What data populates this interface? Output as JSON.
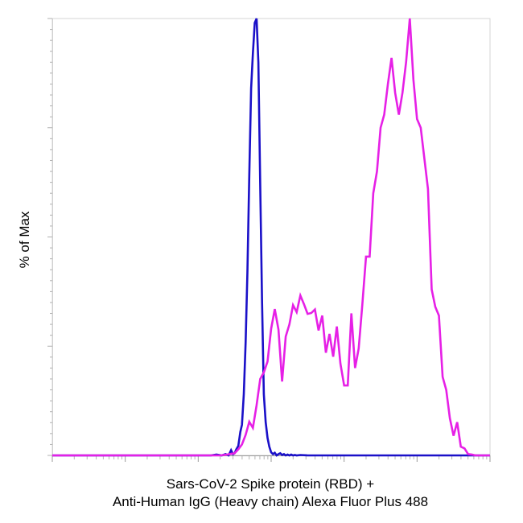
{
  "chart_data": {
    "type": "line",
    "title": "",
    "xlabel_line1": "Sars-CoV-2 Spike protein (RBD) +",
    "xlabel_line2": "Anti-Human IgG (Heavy chain) Alexa Fluor Plus 488",
    "ylabel": "% of Max",
    "x_scale": "log",
    "xlim": [
      1,
      1000000
    ],
    "ylim": [
      0,
      100
    ],
    "grid": false,
    "legend": "none",
    "series": [
      {
        "color": "#1a10c8",
        "x": [
          1,
          126,
          150,
          178,
          211,
          237,
          261,
          282,
          300,
          316,
          333,
          355,
          378,
          398,
          422,
          447,
          473,
          501,
          531,
          562,
          596,
          631,
          668,
          708,
          750,
          794,
          841,
          891,
          944,
          1000,
          1059,
          1122,
          1189,
          1259,
          1334,
          1413,
          1496,
          1585,
          1679,
          1778,
          1884,
          1995,
          2113,
          2239,
          2512,
          3162,
          10000,
          100000,
          1000000
        ],
        "y": [
          0,
          0,
          0,
          0.2,
          0,
          0.3,
          0,
          1.2,
          0.3,
          0.5,
          1.4,
          2.2,
          5.4,
          7,
          14,
          26,
          42,
          64,
          84,
          92,
          99,
          100,
          90,
          62,
          35,
          14,
          7.6,
          4,
          2,
          0.7,
          0.3,
          0.6,
          0,
          0.3,
          0.5,
          0.1,
          0.3,
          0,
          0.2,
          0,
          0.2,
          0,
          0.1,
          0,
          0.1,
          0,
          0,
          0,
          0
        ]
      },
      {
        "color": "#e620e6",
        "x": [
          1,
          200,
          251,
          316,
          355,
          398,
          447,
          501,
          562,
          631,
          708,
          794,
          891,
          1000,
          1122,
          1259,
          1413,
          1585,
          1778,
          1995,
          2239,
          2512,
          2818,
          3162,
          3548,
          3981,
          4467,
          5012,
          5623,
          6310,
          7079,
          7943,
          8913,
          10000,
          11220,
          12589,
          14125,
          15849,
          17783,
          19953,
          22387,
          25119,
          28184,
          31623,
          35481,
          39811,
          44668,
          50119,
          56234,
          63096,
          70795,
          79433,
          89125,
          100000,
          112202,
          125893,
          141254,
          158489,
          177828,
          199526,
          223872,
          251189,
          281838,
          316228,
          354813,
          398107,
          446684,
          501187,
          562341,
          631000,
          1000000
        ],
        "y": [
          0,
          0,
          0.2,
          0.5,
          1.4,
          2.5,
          4.7,
          7.7,
          6.3,
          11.5,
          17.5,
          19,
          21.5,
          29,
          33.5,
          28.8,
          16.9,
          27.2,
          30,
          34.4,
          32.8,
          36.6,
          34.6,
          32.4,
          32.6,
          33.4,
          28.6,
          32,
          23.5,
          27.8,
          22.6,
          29.5,
          21,
          16,
          16,
          32.5,
          20,
          24.5,
          34.5,
          45.5,
          45.5,
          60,
          65,
          75,
          78,
          85,
          91,
          83,
          78,
          83,
          90,
          100,
          86,
          77,
          75,
          68,
          61,
          38,
          34,
          32,
          18,
          15,
          8.5,
          4.5,
          7.6,
          2,
          1.6,
          0.3,
          0.2,
          0,
          0
        ]
      }
    ]
  }
}
